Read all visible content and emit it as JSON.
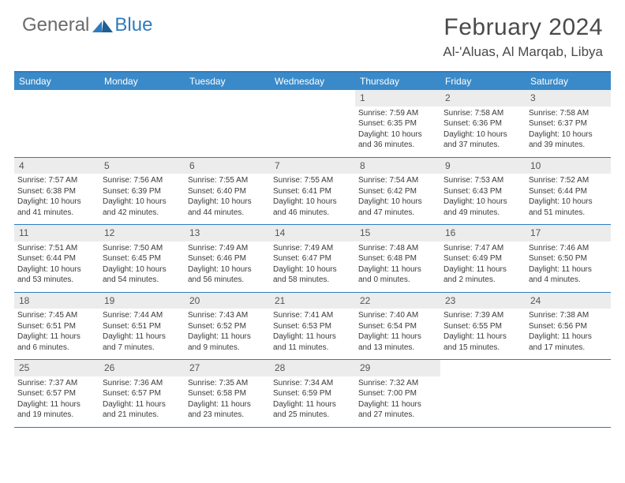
{
  "logo": {
    "general": "General",
    "blue": "Blue"
  },
  "title": "February 2024",
  "location": "Al-'Aluas, Al Marqab, Libya",
  "colors": {
    "accent": "#3a8ac9",
    "border": "#2f7bbf",
    "dayNumBg": "#ececec",
    "text": "#3a3a3a",
    "headerText": "#ffffff"
  },
  "dayHeaders": [
    "Sunday",
    "Monday",
    "Tuesday",
    "Wednesday",
    "Thursday",
    "Friday",
    "Saturday"
  ],
  "weeks": [
    [
      null,
      null,
      null,
      null,
      {
        "d": "1",
        "sr": "7:59 AM",
        "ss": "6:35 PM",
        "dl": "10 hours and 36 minutes."
      },
      {
        "d": "2",
        "sr": "7:58 AM",
        "ss": "6:36 PM",
        "dl": "10 hours and 37 minutes."
      },
      {
        "d": "3",
        "sr": "7:58 AM",
        "ss": "6:37 PM",
        "dl": "10 hours and 39 minutes."
      }
    ],
    [
      {
        "d": "4",
        "sr": "7:57 AM",
        "ss": "6:38 PM",
        "dl": "10 hours and 41 minutes."
      },
      {
        "d": "5",
        "sr": "7:56 AM",
        "ss": "6:39 PM",
        "dl": "10 hours and 42 minutes."
      },
      {
        "d": "6",
        "sr": "7:55 AM",
        "ss": "6:40 PM",
        "dl": "10 hours and 44 minutes."
      },
      {
        "d": "7",
        "sr": "7:55 AM",
        "ss": "6:41 PM",
        "dl": "10 hours and 46 minutes."
      },
      {
        "d": "8",
        "sr": "7:54 AM",
        "ss": "6:42 PM",
        "dl": "10 hours and 47 minutes."
      },
      {
        "d": "9",
        "sr": "7:53 AM",
        "ss": "6:43 PM",
        "dl": "10 hours and 49 minutes."
      },
      {
        "d": "10",
        "sr": "7:52 AM",
        "ss": "6:44 PM",
        "dl": "10 hours and 51 minutes."
      }
    ],
    [
      {
        "d": "11",
        "sr": "7:51 AM",
        "ss": "6:44 PM",
        "dl": "10 hours and 53 minutes."
      },
      {
        "d": "12",
        "sr": "7:50 AM",
        "ss": "6:45 PM",
        "dl": "10 hours and 54 minutes."
      },
      {
        "d": "13",
        "sr": "7:49 AM",
        "ss": "6:46 PM",
        "dl": "10 hours and 56 minutes."
      },
      {
        "d": "14",
        "sr": "7:49 AM",
        "ss": "6:47 PM",
        "dl": "10 hours and 58 minutes."
      },
      {
        "d": "15",
        "sr": "7:48 AM",
        "ss": "6:48 PM",
        "dl": "11 hours and 0 minutes."
      },
      {
        "d": "16",
        "sr": "7:47 AM",
        "ss": "6:49 PM",
        "dl": "11 hours and 2 minutes."
      },
      {
        "d": "17",
        "sr": "7:46 AM",
        "ss": "6:50 PM",
        "dl": "11 hours and 4 minutes."
      }
    ],
    [
      {
        "d": "18",
        "sr": "7:45 AM",
        "ss": "6:51 PM",
        "dl": "11 hours and 6 minutes."
      },
      {
        "d": "19",
        "sr": "7:44 AM",
        "ss": "6:51 PM",
        "dl": "11 hours and 7 minutes."
      },
      {
        "d": "20",
        "sr": "7:43 AM",
        "ss": "6:52 PM",
        "dl": "11 hours and 9 minutes."
      },
      {
        "d": "21",
        "sr": "7:41 AM",
        "ss": "6:53 PM",
        "dl": "11 hours and 11 minutes."
      },
      {
        "d": "22",
        "sr": "7:40 AM",
        "ss": "6:54 PM",
        "dl": "11 hours and 13 minutes."
      },
      {
        "d": "23",
        "sr": "7:39 AM",
        "ss": "6:55 PM",
        "dl": "11 hours and 15 minutes."
      },
      {
        "d": "24",
        "sr": "7:38 AM",
        "ss": "6:56 PM",
        "dl": "11 hours and 17 minutes."
      }
    ],
    [
      {
        "d": "25",
        "sr": "7:37 AM",
        "ss": "6:57 PM",
        "dl": "11 hours and 19 minutes."
      },
      {
        "d": "26",
        "sr": "7:36 AM",
        "ss": "6:57 PM",
        "dl": "11 hours and 21 minutes."
      },
      {
        "d": "27",
        "sr": "7:35 AM",
        "ss": "6:58 PM",
        "dl": "11 hours and 23 minutes."
      },
      {
        "d": "28",
        "sr": "7:34 AM",
        "ss": "6:59 PM",
        "dl": "11 hours and 25 minutes."
      },
      {
        "d": "29",
        "sr": "7:32 AM",
        "ss": "7:00 PM",
        "dl": "11 hours and 27 minutes."
      },
      null,
      null
    ]
  ],
  "labels": {
    "sunrise": "Sunrise: ",
    "sunset": "Sunset: ",
    "daylight": "Daylight: "
  }
}
